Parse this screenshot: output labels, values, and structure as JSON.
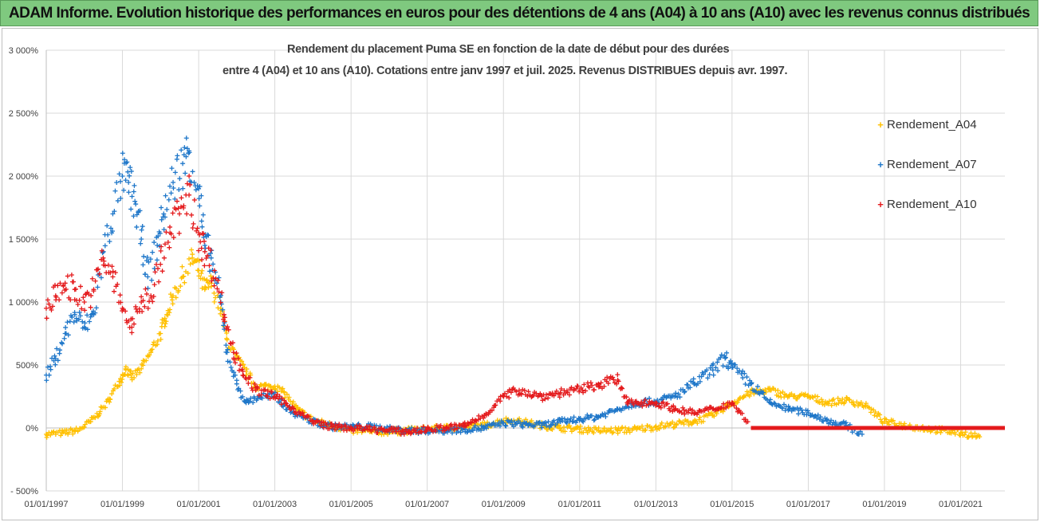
{
  "header": {
    "title": "ADAM Informe. Evolution historique des performances en euros pour des détentions de 4 ans (A04) à 10 ans (A10) avec les revenus connus distribués"
  },
  "chart_data": {
    "type": "scatter",
    "title_line1": "Rendement du placement Puma SE en fonction de la date de début pour des durées",
    "title_line2": "entre 4 (A04) et 10 ans (A10). Cotations entre janv 1997 et juil. 2025. Revenus DISTRIBUES depuis avr. 1997.",
    "xlabel": "",
    "ylabel": "",
    "x_range": [
      "1997-01-01",
      "2022-03-01"
    ],
    "ylim": [
      -500,
      3000
    ],
    "y_ticks": [
      -500,
      0,
      500,
      1000,
      1500,
      2000,
      2500,
      3000
    ],
    "y_tick_labels": [
      "- 500%",
      "0%",
      "500%",
      "1 000%",
      "1 500%",
      "2 000%",
      "2 500%",
      "3 000%"
    ],
    "x_ticks": [
      "1997-01-01",
      "1999-01-01",
      "2001-01-01",
      "2003-01-01",
      "2005-01-01",
      "2007-01-01",
      "2009-01-01",
      "2011-01-01",
      "2013-01-01",
      "2015-01-01",
      "2017-01-01",
      "2019-01-01",
      "2021-01-01"
    ],
    "x_tick_labels": [
      "01/01/1997",
      "01/01/1999",
      "01/01/2001",
      "01/01/2003",
      "01/01/2005",
      "01/01/2007",
      "01/01/2009",
      "01/01/2011",
      "01/01/2013",
      "01/01/2015",
      "01/01/2017",
      "01/01/2019",
      "01/01/2021"
    ],
    "grid": "vertical and horizontal",
    "legend_position": "right",
    "marker": "+",
    "series": [
      {
        "name": "Rendement_A04",
        "color": "#ffc000",
        "points": [
          [
            "1997-01-01",
            -50
          ],
          [
            "1997-06-01",
            -40
          ],
          [
            "1997-11-01",
            -20
          ],
          [
            "1998-03-01",
            50
          ],
          [
            "1998-06-01",
            130
          ],
          [
            "1998-09-01",
            230
          ],
          [
            "1998-12-01",
            370
          ],
          [
            "1999-02-01",
            470
          ],
          [
            "1999-04-01",
            400
          ],
          [
            "1999-07-01",
            470
          ],
          [
            "1999-10-01",
            600
          ],
          [
            "2000-01-01",
            750
          ],
          [
            "2000-03-01",
            900
          ],
          [
            "2000-05-01",
            1050
          ],
          [
            "2000-08-01",
            1200
          ],
          [
            "2000-11-01",
            1350
          ],
          [
            "2001-01-01",
            1250
          ],
          [
            "2001-03-01",
            1100
          ],
          [
            "2001-05-01",
            1150
          ],
          [
            "2001-08-01",
            950
          ],
          [
            "2001-10-01",
            700
          ],
          [
            "2002-01-01",
            550
          ],
          [
            "2002-04-01",
            450
          ],
          [
            "2002-07-01",
            330
          ],
          [
            "2002-10-01",
            330
          ],
          [
            "2003-01-01",
            330
          ],
          [
            "2003-04-01",
            280
          ],
          [
            "2003-08-01",
            150
          ],
          [
            "2004-01-01",
            60
          ],
          [
            "2004-07-01",
            20
          ],
          [
            "2005-01-01",
            -20
          ],
          [
            "2005-07-01",
            -30
          ],
          [
            "2006-01-01",
            -30
          ],
          [
            "2006-07-01",
            -20
          ],
          [
            "2007-01-01",
            -10
          ],
          [
            "2007-07-01",
            0
          ],
          [
            "2008-01-01",
            10
          ],
          [
            "2008-07-01",
            20
          ],
          [
            "2009-01-01",
            60
          ],
          [
            "2009-07-01",
            50
          ],
          [
            "2010-01-01",
            20
          ],
          [
            "2010-07-01",
            0
          ],
          [
            "2011-01-01",
            -10
          ],
          [
            "2011-07-01",
            -20
          ],
          [
            "2012-01-01",
            -20
          ],
          [
            "2012-07-01",
            -10
          ],
          [
            "2013-01-01",
            10
          ],
          [
            "2013-07-01",
            30
          ],
          [
            "2014-01-01",
            50
          ],
          [
            "2014-07-01",
            100
          ],
          [
            "2015-01-01",
            200
          ],
          [
            "2015-07-01",
            280
          ],
          [
            "2016-01-01",
            300
          ],
          [
            "2016-07-01",
            250
          ],
          [
            "2017-01-01",
            250
          ],
          [
            "2017-07-01",
            200
          ],
          [
            "2018-01-01",
            220
          ],
          [
            "2018-07-01",
            180
          ],
          [
            "2019-01-01",
            50
          ],
          [
            "2019-07-01",
            20
          ],
          [
            "2020-01-01",
            0
          ],
          [
            "2020-07-01",
            -20
          ],
          [
            "2021-01-01",
            -40
          ],
          [
            "2021-07-01",
            -70
          ]
        ]
      },
      {
        "name": "Rendement_A07",
        "color": "#1f77c9",
        "points": [
          [
            "1997-01-01",
            420
          ],
          [
            "1997-04-01",
            550
          ],
          [
            "1997-07-01",
            750
          ],
          [
            "1997-10-01",
            900
          ],
          [
            "1998-01-01",
            800
          ],
          [
            "1998-04-01",
            900
          ],
          [
            "1998-07-01",
            1400
          ],
          [
            "1998-10-01",
            1700
          ],
          [
            "1999-01-01",
            2000
          ],
          [
            "1999-03-01",
            1950
          ],
          [
            "1999-05-01",
            1800
          ],
          [
            "1999-07-01",
            1500
          ],
          [
            "1999-09-01",
            1200
          ],
          [
            "1999-12-01",
            1450
          ],
          [
            "2000-02-01",
            1700
          ],
          [
            "2000-05-01",
            1950
          ],
          [
            "2000-08-01",
            2100
          ],
          [
            "2000-10-01",
            2200
          ],
          [
            "2001-01-01",
            1900
          ],
          [
            "2001-03-01",
            1450
          ],
          [
            "2001-05-01",
            1350
          ],
          [
            "2001-08-01",
            1000
          ],
          [
            "2001-10-01",
            600
          ],
          [
            "2002-01-01",
            350
          ],
          [
            "2002-04-01",
            200
          ],
          [
            "2002-08-01",
            250
          ],
          [
            "2003-01-01",
            250
          ],
          [
            "2003-07-01",
            120
          ],
          [
            "2004-01-01",
            50
          ],
          [
            "2004-07-01",
            10
          ],
          [
            "2005-01-01",
            10
          ],
          [
            "2005-07-01",
            10
          ],
          [
            "2006-01-01",
            -10
          ],
          [
            "2006-07-01",
            -20
          ],
          [
            "2007-01-01",
            -20
          ],
          [
            "2007-07-01",
            -20
          ],
          [
            "2008-01-01",
            -10
          ],
          [
            "2008-07-01",
            0
          ],
          [
            "2009-01-01",
            40
          ],
          [
            "2009-07-01",
            30
          ],
          [
            "2010-01-01",
            20
          ],
          [
            "2010-07-01",
            50
          ],
          [
            "2011-01-01",
            70
          ],
          [
            "2011-07-01",
            90
          ],
          [
            "2012-01-01",
            150
          ],
          [
            "2012-07-01",
            200
          ],
          [
            "2013-01-01",
            210
          ],
          [
            "2013-07-01",
            250
          ],
          [
            "2014-01-01",
            350
          ],
          [
            "2014-07-01",
            460
          ],
          [
            "2014-11-01",
            560
          ],
          [
            "2015-01-01",
            480
          ],
          [
            "2015-07-01",
            350
          ],
          [
            "2016-01-01",
            200
          ],
          [
            "2016-07-01",
            150
          ],
          [
            "2017-01-01",
            120
          ],
          [
            "2017-07-01",
            60
          ],
          [
            "2018-01-01",
            20
          ],
          [
            "2018-06-01",
            -50
          ]
        ]
      },
      {
        "name": "Rendement_A10",
        "color": "#e41a1c",
        "points": [
          [
            "1997-01-01",
            950
          ],
          [
            "1997-04-01",
            1050
          ],
          [
            "1997-07-01",
            1150
          ],
          [
            "1997-10-01",
            1100
          ],
          [
            "1998-01-01",
            1000
          ],
          [
            "1998-04-01",
            1100
          ],
          [
            "1998-07-01",
            1350
          ],
          [
            "1998-10-01",
            1200
          ],
          [
            "1999-01-01",
            950
          ],
          [
            "1999-04-01",
            800
          ],
          [
            "1999-07-01",
            1000
          ],
          [
            "1999-10-01",
            1050
          ],
          [
            "2000-01-01",
            1300
          ],
          [
            "2000-04-01",
            1550
          ],
          [
            "2000-07-01",
            1700
          ],
          [
            "2000-10-01",
            1850
          ],
          [
            "2001-01-01",
            1550
          ],
          [
            "2001-03-01",
            1400
          ],
          [
            "2001-06-01",
            1250
          ],
          [
            "2001-09-01",
            900
          ],
          [
            "2001-12-01",
            600
          ],
          [
            "2002-03-01",
            450
          ],
          [
            "2002-07-01",
            300
          ],
          [
            "2003-01-01",
            250
          ],
          [
            "2003-07-01",
            150
          ],
          [
            "2004-01-01",
            50
          ],
          [
            "2004-07-01",
            10
          ],
          [
            "2005-01-01",
            0
          ],
          [
            "2005-07-01",
            -10
          ],
          [
            "2006-01-01",
            -20
          ],
          [
            "2006-07-01",
            -30
          ],
          [
            "2007-01-01",
            -10
          ],
          [
            "2007-07-01",
            0
          ],
          [
            "2008-01-01",
            20
          ],
          [
            "2008-07-01",
            100
          ],
          [
            "2009-01-01",
            250
          ],
          [
            "2009-06-01",
            300
          ],
          [
            "2010-01-01",
            250
          ],
          [
            "2010-07-01",
            280
          ],
          [
            "2011-01-01",
            300
          ],
          [
            "2011-07-01",
            350
          ],
          [
            "2012-01-01",
            380
          ],
          [
            "2012-04-01",
            200
          ],
          [
            "2013-01-01",
            200
          ],
          [
            "2013-07-01",
            150
          ],
          [
            "2014-01-01",
            120
          ],
          [
            "2014-07-01",
            150
          ],
          [
            "2015-01-01",
            200
          ],
          [
            "2015-06-01",
            50
          ]
        ],
        "flat_segment": {
          "from": "2015-07-01",
          "to": "2022-03-01",
          "value": 0
        }
      }
    ]
  },
  "legend": {
    "items": [
      {
        "label": "Rendement_A04",
        "color": "#ffc000",
        "marker": "+"
      },
      {
        "label": "Rendement_A07",
        "color": "#1f77c9",
        "marker": "+"
      },
      {
        "label": "Rendement_A10",
        "color": "#e41a1c",
        "marker": "+"
      }
    ]
  }
}
